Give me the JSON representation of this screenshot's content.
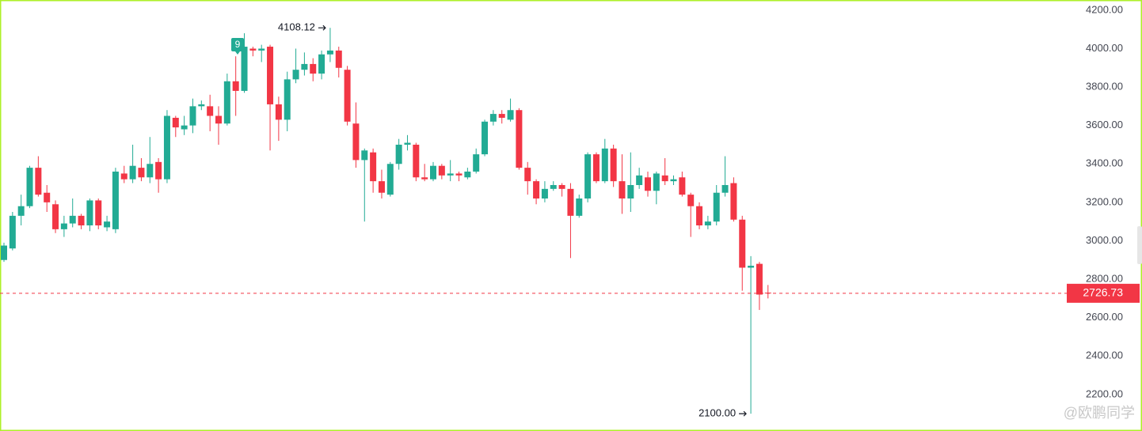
{
  "chart_data": {
    "type": "candlestick",
    "open": [
      2900,
      2960,
      3130,
      3180,
      3380,
      3250,
      3190,
      3060,
      3090,
      3130,
      3080,
      3210,
      3070,
      3060,
      3350,
      3320,
      3380,
      3330,
      3410,
      3320,
      3640,
      3580,
      3600,
      3700,
      3700,
      3650,
      3610,
      3830,
      3780,
      4000,
      3990,
      4010,
      3710,
      3630,
      3840,
      3890,
      3920,
      3870,
      3970,
      3990,
      3890,
      3610,
      3420,
      3460,
      3310,
      3240,
      3400,
      3500,
      3500,
      3330,
      3320,
      3390,
      3340,
      3350,
      3330,
      3360,
      3450,
      3620,
      3660,
      3630,
      3680,
      3380,
      3310,
      3220,
      3270,
      3290,
      3270,
      3130,
      3220,
      3450,
      3310,
      3480,
      3310,
      3220,
      3290,
      3330,
      3260,
      3340,
      3310,
      3330,
      3240,
      3180,
      3080,
      3100,
      3250,
      3300,
      3110,
      2860,
      2880,
      2730
    ],
    "high": [
      2990,
      3150,
      3240,
      3390,
      3440,
      3290,
      3210,
      3130,
      3220,
      3140,
      3220,
      3220,
      3130,
      3380,
      3390,
      3500,
      3430,
      3540,
      3430,
      3680,
      3650,
      3650,
      3740,
      3730,
      3760,
      3700,
      3870,
      3960,
      4080,
      4010,
      4020,
      4020,
      3750,
      3880,
      4000,
      3980,
      3950,
      3990,
      4108.12,
      4010,
      3910,
      3720,
      3480,
      3480,
      3370,
      3410,
      3530,
      3550,
      3510,
      3400,
      3410,
      3400,
      3420,
      3360,
      3380,
      3480,
      3630,
      3680,
      3680,
      3740,
      3690,
      3410,
      3320,
      3310,
      3310,
      3300,
      3300,
      3240,
      3460,
      3460,
      3530,
      3500,
      3450,
      3460,
      3380,
      3360,
      3360,
      3430,
      3340,
      3360,
      3250,
      3200,
      3130,
      3290,
      3440,
      3330,
      3130,
      2920,
      2890,
      2770
    ],
    "low": [
      2890,
      2950,
      3080,
      3170,
      3230,
      3150,
      3040,
      3020,
      3070,
      3060,
      3050,
      3060,
      3050,
      3040,
      3300,
      3300,
      3310,
      3300,
      3250,
      3300,
      3540,
      3550,
      3560,
      3680,
      3570,
      3500,
      3600,
      3650,
      3770,
      3960,
      3930,
      3470,
      3520,
      3570,
      3820,
      3860,
      3830,
      3840,
      3930,
      3850,
      3600,
      3380,
      3100,
      3250,
      3220,
      3230,
      3370,
      3470,
      3310,
      3310,
      3310,
      3320,
      3310,
      3310,
      3320,
      3350,
      3440,
      3600,
      3610,
      3620,
      3370,
      3240,
      3190,
      3200,
      3260,
      3230,
      2910,
      3120,
      3200,
      3300,
      3300,
      3280,
      3140,
      3150,
      3270,
      3230,
      3190,
      3290,
      3290,
      3230,
      3020,
      3060,
      3060,
      3080,
      3230,
      3100,
      2740,
      2100,
      2640,
      2700
    ],
    "close": [
      2975,
      3130,
      3180,
      3380,
      3240,
      3200,
      3060,
      3090,
      3130,
      3080,
      3210,
      3080,
      3100,
      3360,
      3320,
      3390,
      3330,
      3400,
      3320,
      3650,
      3590,
      3600,
      3700,
      3710,
      3650,
      3610,
      3830,
      3780,
      4010,
      3990,
      4000,
      3710,
      3630,
      3840,
      3890,
      3920,
      3870,
      3970,
      3990,
      3900,
      3620,
      3420,
      3470,
      3310,
      3250,
      3400,
      3500,
      3510,
      3330,
      3320,
      3390,
      3340,
      3350,
      3340,
      3360,
      3450,
      3620,
      3660,
      3640,
      3680,
      3380,
      3310,
      3220,
      3270,
      3290,
      3270,
      3130,
      3220,
      3450,
      3310,
      3480,
      3310,
      3220,
      3290,
      3340,
      3260,
      3350,
      3310,
      3320,
      3240,
      3180,
      3080,
      3100,
      3250,
      3290,
      3110,
      2860,
      2870,
      2720,
      2726.73
    ],
    "up_color": "#22ab94",
    "down_color": "#f23645",
    "ylim": [
      2010,
      4253
    ],
    "yticks": [
      {
        "value": 2200,
        "label": "2200.00"
      },
      {
        "value": 2400,
        "label": "2400.00"
      },
      {
        "value": 2600,
        "label": "2600.00"
      },
      {
        "value": 2800,
        "label": "2800.00"
      },
      {
        "value": 3000,
        "label": "3000.00"
      },
      {
        "value": 3200,
        "label": "3200.00"
      },
      {
        "value": 3400,
        "label": "3400.00"
      },
      {
        "value": 3600,
        "label": "3600.00"
      },
      {
        "value": 3800,
        "label": "3800.00"
      },
      {
        "value": 4000,
        "label": "4000.00"
      },
      {
        "value": 4200,
        "label": "4200.00"
      }
    ],
    "high_label": {
      "value": 4108.12,
      "label": "4108.12"
    },
    "low_label": {
      "value": 2100,
      "label": "2100.00"
    },
    "last_price": {
      "value": 2726.73,
      "label": "2726.73"
    },
    "badge": "9",
    "watermark": "@欧鹏同学"
  }
}
